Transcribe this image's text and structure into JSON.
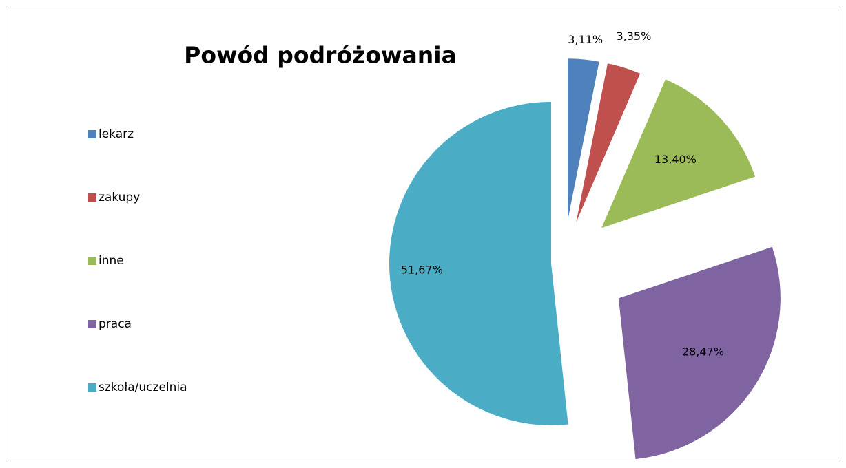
{
  "chart_data": {
    "type": "pie",
    "title": "Powód podróżowania",
    "categories": [
      "lekarz",
      "zakupy",
      "inne",
      "praca",
      "szkoła/uczelnia"
    ],
    "values": [
      3.11,
      3.35,
      13.4,
      28.47,
      51.67
    ],
    "value_labels": [
      "3,11%",
      "3,35%",
      "13,40%",
      "28,47%",
      "51,67%"
    ],
    "colors": [
      "#4f81bd",
      "#c0504d",
      "#9bbb59",
      "#8064a2",
      "#4bacc6"
    ],
    "legend": "left"
  }
}
